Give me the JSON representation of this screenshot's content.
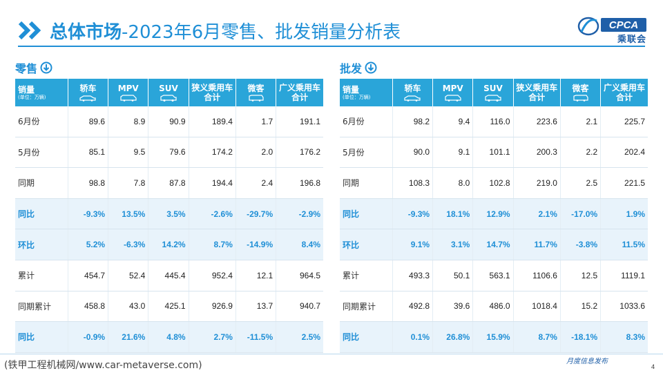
{
  "header": {
    "title_main": "总体市场",
    "title_sub": "-2023年6月零售、批发销量分析表",
    "logo_text": "CPCA",
    "logo_cn": "乘联会"
  },
  "colors": {
    "accent": "#1f8fd6",
    "header_bg": "#2aa5d9",
    "highlight_row": "#e8f3fb"
  },
  "columns": {
    "c0_main": "销量",
    "c0_unit": "(单位：万辆)",
    "c1": "轿车",
    "c2": "MPV",
    "c3": "SUV",
    "c4a": "狭义乘用车",
    "c4b": "合计",
    "c5": "微客",
    "c6a": "广义乘用车",
    "c6b": "合计"
  },
  "retail": {
    "label": "零售",
    "rows": [
      {
        "label": "6月份",
        "v": [
          "89.6",
          "8.9",
          "90.9",
          "189.4",
          "1.7",
          "191.1"
        ]
      },
      {
        "label": "5月份",
        "v": [
          "85.1",
          "9.5",
          "79.6",
          "174.2",
          "2.0",
          "176.2"
        ]
      },
      {
        "label": "同期",
        "v": [
          "98.8",
          "7.8",
          "87.8",
          "194.4",
          "2.4",
          "196.8"
        ]
      },
      {
        "label": "同比",
        "v": [
          "-9.3%",
          "13.5%",
          "3.5%",
          "-2.6%",
          "-29.7%",
          "-2.9%"
        ]
      },
      {
        "label": "环比",
        "v": [
          "5.2%",
          "-6.3%",
          "14.2%",
          "8.7%",
          "-14.9%",
          "8.4%"
        ]
      },
      {
        "label": "累计",
        "v": [
          "454.7",
          "52.4",
          "445.4",
          "952.4",
          "12.1",
          "964.5"
        ]
      },
      {
        "label": "同期累计",
        "v": [
          "458.8",
          "43.0",
          "425.1",
          "926.9",
          "13.7",
          "940.7"
        ]
      },
      {
        "label": "同比",
        "v": [
          "-0.9%",
          "21.6%",
          "4.8%",
          "2.7%",
          "-11.5%",
          "2.5%"
        ]
      }
    ]
  },
  "wholesale": {
    "label": "批发",
    "rows": [
      {
        "label": "6月份",
        "v": [
          "98.2",
          "9.4",
          "116.0",
          "223.6",
          "2.1",
          "225.7"
        ]
      },
      {
        "label": "5月份",
        "v": [
          "90.0",
          "9.1",
          "101.1",
          "200.3",
          "2.2",
          "202.4"
        ]
      },
      {
        "label": "同期",
        "v": [
          "108.3",
          "8.0",
          "102.8",
          "219.0",
          "2.5",
          "221.5"
        ]
      },
      {
        "label": "同比",
        "v": [
          "-9.3%",
          "18.1%",
          "12.9%",
          "2.1%",
          "-17.0%",
          "1.9%"
        ]
      },
      {
        "label": "环比",
        "v": [
          "9.1%",
          "3.1%",
          "14.7%",
          "11.7%",
          "-3.8%",
          "11.5%"
        ]
      },
      {
        "label": "累计",
        "v": [
          "493.3",
          "50.1",
          "563.1",
          "1106.6",
          "12.5",
          "1119.1"
        ]
      },
      {
        "label": "同期累计",
        "v": [
          "492.8",
          "39.6",
          "486.0",
          "1018.4",
          "15.2",
          "1033.6"
        ]
      },
      {
        "label": "同比",
        "v": [
          "0.1%",
          "26.8%",
          "15.9%",
          "8.7%",
          "-18.1%",
          "8.3%"
        ]
      }
    ]
  },
  "footer": {
    "source": "(铁甲工程机械网/www.car-metaverse.com)",
    "release": "月度信息发布",
    "page": "4"
  }
}
